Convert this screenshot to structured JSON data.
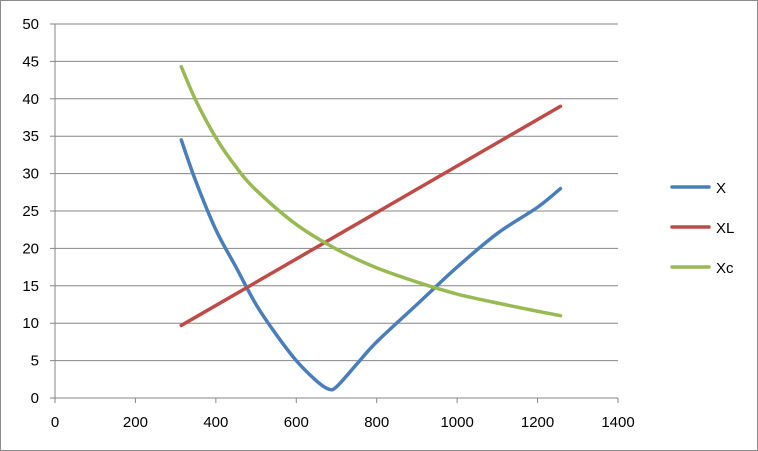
{
  "chart_data": {
    "type": "line",
    "title": "",
    "xlabel": "",
    "ylabel": "",
    "xlim": [
      0,
      1400
    ],
    "ylim": [
      0,
      50
    ],
    "x_ticks": [
      0,
      200,
      400,
      600,
      800,
      1000,
      1200,
      1400
    ],
    "y_ticks": [
      0,
      5,
      10,
      15,
      20,
      25,
      30,
      35,
      40,
      45,
      50
    ],
    "grid": "horizontal major gridlines",
    "legend_position": "right",
    "series": [
      {
        "name": "X",
        "color": "#4a7ebb",
        "points": [
          [
            314,
            34.5
          ],
          [
            350,
            29
          ],
          [
            400,
            22.5
          ],
          [
            450,
            17.5
          ],
          [
            500,
            12.5
          ],
          [
            550,
            8.5
          ],
          [
            600,
            5
          ],
          [
            650,
            2.3
          ],
          [
            680,
            1.2
          ],
          [
            700,
            1.5
          ],
          [
            750,
            4.5
          ],
          [
            800,
            7.5
          ],
          [
            900,
            12.5
          ],
          [
            1000,
            17.5
          ],
          [
            1100,
            22
          ],
          [
            1200,
            25.5
          ],
          [
            1257,
            28
          ]
        ]
      },
      {
        "name": "XL",
        "color": "#be4b48",
        "points": [
          [
            314,
            9.7
          ],
          [
            1257,
            39
          ]
        ]
      },
      {
        "name": "Xc",
        "color": "#98b954",
        "points": [
          [
            314,
            44.3
          ],
          [
            350,
            39.8
          ],
          [
            400,
            34.8
          ],
          [
            450,
            30.9
          ],
          [
            500,
            27.8
          ],
          [
            600,
            23.2
          ],
          [
            700,
            19.9
          ],
          [
            800,
            17.4
          ],
          [
            900,
            15.5
          ],
          [
            1000,
            13.9
          ],
          [
            1100,
            12.7
          ],
          [
            1200,
            11.6
          ],
          [
            1257,
            11.0
          ]
        ]
      }
    ]
  }
}
